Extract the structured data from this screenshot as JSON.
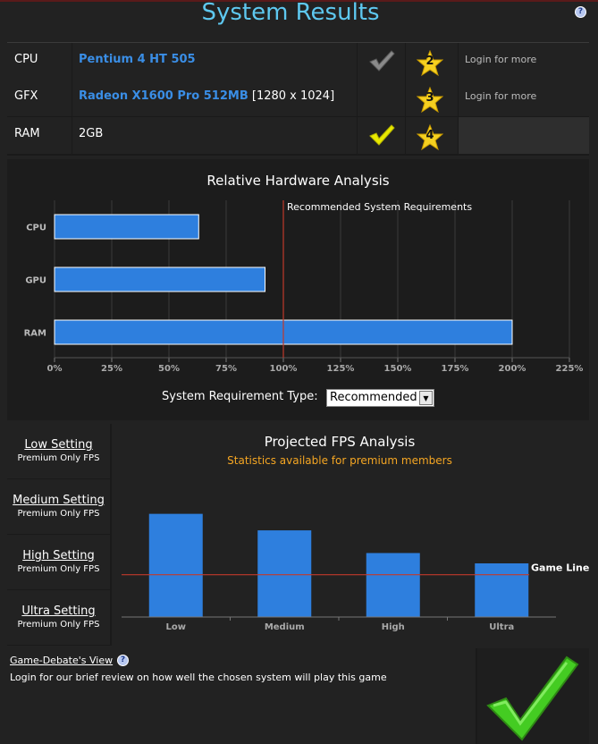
{
  "page": {
    "title": "System Results"
  },
  "hardware": [
    {
      "label": "CPU",
      "value": "Pentium 4 HT 505",
      "extra": "",
      "check": "grey-check-icon",
      "rating": "2",
      "more": "Login for more"
    },
    {
      "label": "GFX",
      "value": "Radeon X1600 Pro 512MB",
      "extra": "[1280 x 1024]",
      "check": "",
      "rating": "3",
      "more": "Login for more"
    },
    {
      "label": "RAM",
      "value": "2GB",
      "extra": "",
      "check": "yellow-check-icon",
      "rating": "4",
      "more": ""
    }
  ],
  "hw_chart": {
    "title": "Relative Hardware Analysis",
    "annotation": "Recommended System Requirements",
    "requirement_type_label": "System Requirement Type:",
    "requirement_type_value": "Recommended"
  },
  "fps": {
    "title": "Projected FPS Analysis",
    "subtitle": "Statistics available for premium members",
    "game_line_label": "Game Line",
    "settings": [
      {
        "name": "Low Setting",
        "sub": "Premium Only FPS"
      },
      {
        "name": "Medium Setting",
        "sub": "Premium Only FPS"
      },
      {
        "name": "High Setting",
        "sub": "Premium Only FPS"
      },
      {
        "name": "Ultra Setting",
        "sub": "Premium Only FPS"
      }
    ]
  },
  "view": {
    "title": "Game-Debate's View",
    "text": "Login for our brief review on how well the chosen system will play this game"
  },
  "colors": {
    "title": "#5ec8f0",
    "link": "#3a8ee6",
    "bar": "#2e7fde",
    "req_line": "#c0392b",
    "premium": "#f5a623",
    "check_green": "#44cc22"
  },
  "chart_data": [
    {
      "type": "bar",
      "orientation": "horizontal",
      "title": "Relative Hardware Analysis",
      "categories": [
        "CPU",
        "GPU",
        "RAM"
      ],
      "values": [
        63,
        92,
        200
      ],
      "unit": "%",
      "xlim": [
        0,
        225
      ],
      "x_ticks": [
        "0%",
        "25%",
        "50%",
        "75%",
        "100%",
        "125%",
        "150%",
        "175%",
        "200%",
        "225%"
      ],
      "reference_line": {
        "value": 100,
        "label": "Recommended System Requirements"
      },
      "grid": true
    },
    {
      "type": "bar",
      "title": "Projected FPS Analysis",
      "subtitle": "Statistics available for premium members",
      "categories": [
        "Low",
        "Medium",
        "High",
        "Ultra"
      ],
      "values": [
        100,
        84,
        62,
        52
      ],
      "reference_line": {
        "value": 41,
        "label": "Game Line"
      },
      "ylim": [
        0,
        130
      ]
    }
  ]
}
